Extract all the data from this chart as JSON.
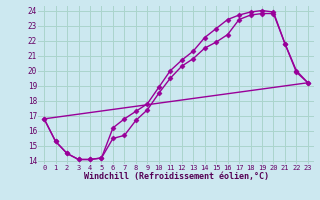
{
  "xlabel": "Windchill (Refroidissement éolien,°C)",
  "bg_color": "#cce8f0",
  "grid_color": "#aad4cc",
  "line_color": "#990099",
  "xlim": [
    -0.5,
    23.5
  ],
  "ylim": [
    13.8,
    24.3
  ],
  "xticks": [
    0,
    1,
    2,
    3,
    4,
    5,
    6,
    7,
    8,
    9,
    10,
    11,
    12,
    13,
    14,
    15,
    16,
    17,
    18,
    19,
    20,
    21,
    22,
    23
  ],
  "yticks": [
    14,
    15,
    16,
    17,
    18,
    19,
    20,
    21,
    22,
    23,
    24
  ],
  "line1_x": [
    0,
    1,
    2,
    3,
    4,
    5,
    6,
    7,
    8,
    9,
    10,
    11,
    12,
    13,
    14,
    15,
    16,
    17,
    18,
    19,
    20,
    21,
    22,
    23
  ],
  "line1_y": [
    16.8,
    15.3,
    14.5,
    14.1,
    14.1,
    14.2,
    15.5,
    15.7,
    16.7,
    17.4,
    18.5,
    19.5,
    20.3,
    20.8,
    21.5,
    21.9,
    22.4,
    23.4,
    23.7,
    23.8,
    23.8,
    21.8,
    19.9,
    19.2
  ],
  "line2_x": [
    0,
    1,
    2,
    3,
    4,
    5,
    6,
    7,
    8,
    9,
    10,
    11,
    12,
    13,
    14,
    15,
    16,
    17,
    18,
    19,
    20,
    21,
    22,
    23
  ],
  "line2_y": [
    16.8,
    15.3,
    14.5,
    14.1,
    14.1,
    14.2,
    16.2,
    16.8,
    17.3,
    17.8,
    18.9,
    20.0,
    20.7,
    21.3,
    22.2,
    22.8,
    23.4,
    23.7,
    23.9,
    24.0,
    23.9,
    21.8,
    20.0,
    19.2
  ],
  "line3_x": [
    0,
    23
  ],
  "line3_y": [
    16.8,
    19.2
  ],
  "marker": "D",
  "marker_size": 2.5,
  "linewidth": 1.0
}
